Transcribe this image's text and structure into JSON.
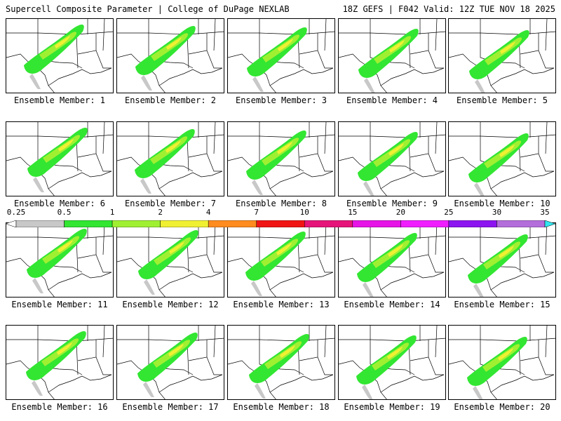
{
  "header": {
    "title_left": "Supercell Composite Parameter | College of DuPage NEXLAB",
    "title_right": "18Z GEFS | F042 Valid: 12Z TUE NOV 18 2025"
  },
  "panels": [
    {
      "label": "Ensemble Member: 1"
    },
    {
      "label": "Ensemble Member: 2"
    },
    {
      "label": "Ensemble Member: 3"
    },
    {
      "label": "Ensemble Member: 4"
    },
    {
      "label": "Ensemble Member: 5"
    },
    {
      "label": "Ensemble Member: 6"
    },
    {
      "label": "Ensemble Member: 7"
    },
    {
      "label": "Ensemble Member: 8"
    },
    {
      "label": "Ensemble Member: 9"
    },
    {
      "label": "Ensemble Member: 10"
    },
    {
      "label": "Ensemble Member: 11"
    },
    {
      "label": "Ensemble Member: 12"
    },
    {
      "label": "Ensemble Member: 13"
    },
    {
      "label": "Ensemble Member: 14"
    },
    {
      "label": "Ensemble Member: 15"
    },
    {
      "label": "Ensemble Member: 16"
    },
    {
      "label": "Ensemble Member: 17"
    },
    {
      "label": "Ensemble Member: 18"
    },
    {
      "label": "Ensemble Member: 19"
    },
    {
      "label": "Ensemble Member: 20"
    }
  ],
  "colorbar": {
    "labels": [
      "0.25",
      "0.5",
      "1",
      "2",
      "4",
      "7",
      "10",
      "15",
      "20",
      "25",
      "30",
      "35"
    ],
    "colors": [
      "#ffffff",
      "#c8c8c8",
      "#32e632",
      "#a0f032",
      "#f0f032",
      "#ff8c1e",
      "#f01414",
      "#e6147a",
      "#e614e6",
      "#f01eff",
      "#8c14f0",
      "#b46edc",
      "#32e6f0"
    ]
  }
}
